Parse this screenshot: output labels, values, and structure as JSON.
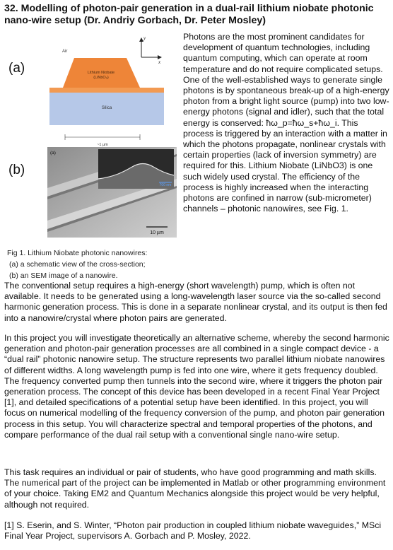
{
  "title": "32. Modelling of photon-pair generation in a dual-rail lithium niobate photonic nano-wire setup (Dr. Andriy Gorbach, Dr. Peter Mosley)",
  "figure": {
    "label_a": "(a)",
    "label_b": "(b)",
    "schematic": {
      "air": "Air",
      "axis_y": "y",
      "axis_x": "x",
      "waveguide_line1": "Lithium Niobate",
      "waveguide_line2": "(LiNbO₃)",
      "substrate": "Silica",
      "scale": "~1 µm"
    },
    "sem": {
      "panel_label": "(a)",
      "inset_scale": "700 nm",
      "scale": "10 µm"
    },
    "caption": [
      "Fig 1. Lithium Niobate photonic nanowires:",
      "(a) a schematic view of the cross-section;",
      "(b) an SEM image of a nanowire."
    ]
  },
  "right_column": "Photons are the most prominent candidates for development of quantum technologies, including quantum computing, which can operate at room temperature and do not require complicated setups. One of the well-established ways to generate single photons is by spontaneous break-up of a high-energy photon from a bright light source (pump) into two low-energy photons (signal and idler), such that the total energy is conserved: ħω_p=ħω_s+ħω_i. This process is triggered by an interaction with a matter in which the photons propagate, nonlinear crystals with certain properties (lack of inversion symmetry) are required for this. Lithium Niobate (LiNbO3) is one such widely used crystal. The efficiency of the process is highly increased when the interacting photons are confined in narrow (sub-micrometer) channels – photonic nanowires, see Fig. 1.",
  "paragraphs": [
    "The conventional setup requires a high-energy (short wavelength) pump, which is often not available. It needs to be generated using a long-wavelength laser source via the so-called second harmonic generation process. This is done in a separate nonlinear crystal, and its output is then fed into a nanowire/crystal where photon pairs are generated.",
    "In this project you will investigate theoretically an alternative scheme, whereby the second harmonic generation and photon-pair generation processes are all combined in a single compact device - a “dual rail” photonic nanowire setup. The structure represents two parallel lithium niobate nanowires of different widths. A long wavelength pump is fed into one wire, where it gets frequency doubled. The frequency converted pump then tunnels into the second wire, where it triggers the photon pair generation process. The concept of this device has been developed in a recent Final Year Project [1], and detailed specifications of a potential setup have been identified. In this project, you will focus on numerical modelling of the frequency conversion of the pump, and photon pair generation process in this setup. You will characterize spectral and temporal properties of the photons, and compare performance of the dual rail setup with a conventional single nano-wire setup.",
    "This task requires an individual or pair of students, who have good programming and math skills. The numerical part of the project can be implemented in Matlab or other programming environment of your choice. Taking EM2 and Quantum Mechanics alongside this project would be very helpful, although not required.",
    "[1] S. Eserin, and S. Winter, “Photon pair production in coupled lithium niobate waveguides,” MSci Final Year Project, supervisors A. Gorbach and P. Mosley, 2022."
  ],
  "colors": {
    "waveguide": "#f0883a",
    "waveguide_top_layer": "#ee7f2c",
    "substrate": "#b7c9e8",
    "thin_layer": "#f4a25c"
  }
}
